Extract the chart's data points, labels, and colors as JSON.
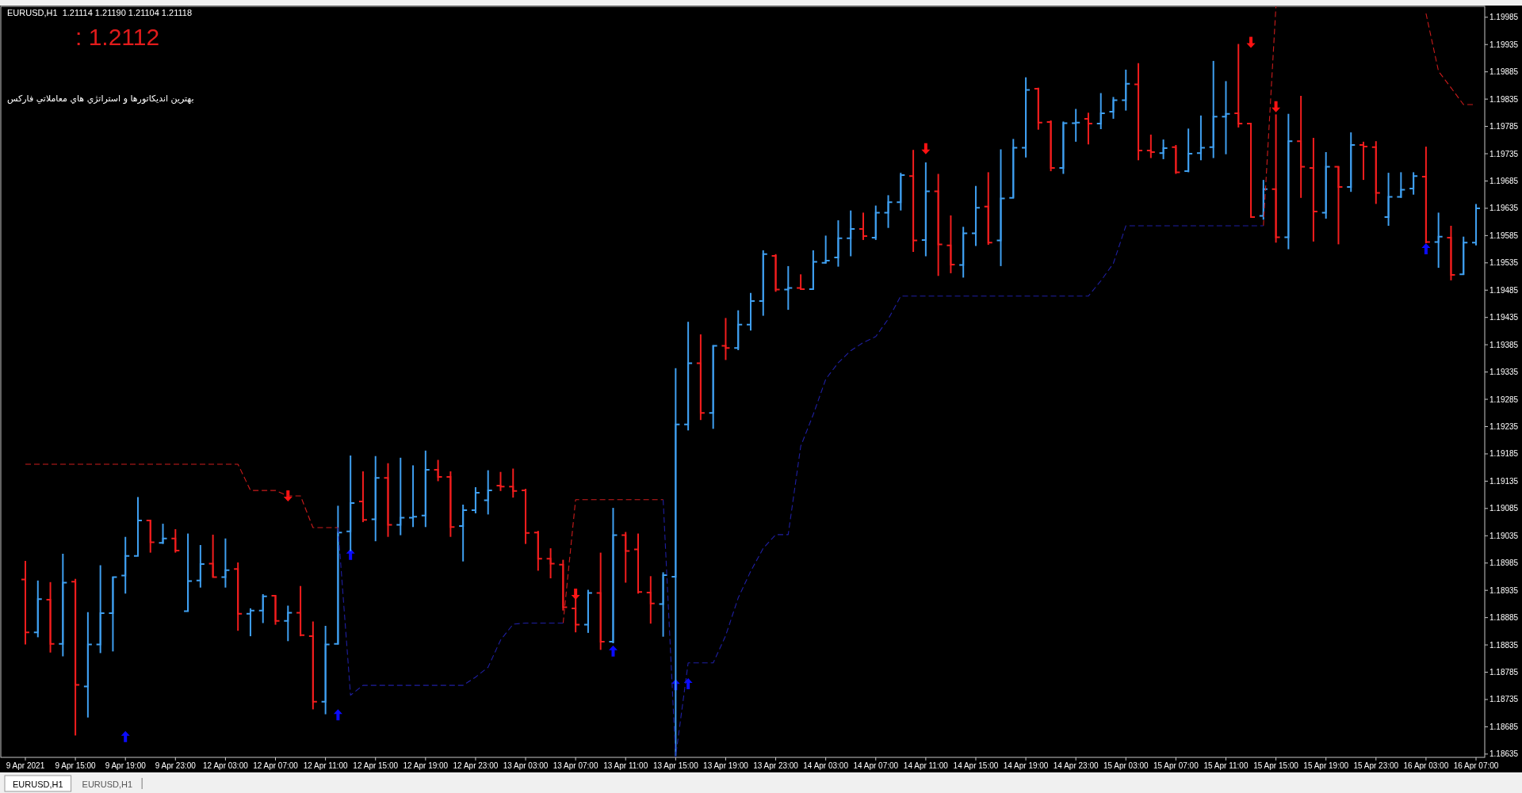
{
  "chart_data": {
    "type": "candlestick",
    "title": "EURUSD,H1  1.21114 1.21190 1.21104 1.21118",
    "annotations": [
      ": 1.2112",
      "بهترین اندیکاتورها و استراتژي هاي معاملاتي فارکس",
      "EURUSD,H1",
      "EURUSD,H1"
    ],
    "categories": [
      "9 Apr 2021",
      null,
      null,
      null,
      "9 Apr 15:00",
      null,
      null,
      null,
      "9 Apr 19:00",
      null,
      null,
      null,
      "9 Apr 23:00",
      null,
      null,
      null,
      "12 Apr 03:00",
      null,
      null,
      null,
      "12 Apr 07:00",
      null,
      null,
      null,
      "12 Apr 11:00",
      null,
      null,
      null,
      "12 Apr 15:00",
      null,
      null,
      null,
      "12 Apr 19:00",
      null,
      null,
      null,
      "12 Apr 23:00",
      null,
      null,
      null,
      "13 Apr 03:00",
      null,
      null,
      null,
      "13 Apr 07:00",
      null,
      null,
      null,
      "13 Apr 11:00",
      null,
      null,
      null,
      "13 Apr 15:00",
      null,
      null,
      null,
      "13 Apr 19:00",
      null,
      null,
      null,
      "13 Apr 23:00",
      null,
      null,
      null,
      "14 Apr 03:00",
      null,
      null,
      null,
      "14 Apr 07:00",
      null,
      null,
      null,
      "14 Apr 11:00",
      null,
      null,
      null,
      "14 Apr 15:00",
      null,
      null,
      null,
      "14 Apr 19:00",
      null,
      null,
      null,
      "14 Apr 23:00",
      null,
      null,
      null,
      "15 Apr 03:00",
      null,
      null,
      null,
      "15 Apr 07:00",
      null,
      null,
      null,
      "15 Apr 11:00",
      null,
      null,
      null,
      "15 Apr 15:00",
      null,
      null,
      null,
      "15 Apr 19:00",
      null,
      null,
      null,
      "15 Apr 23:00",
      null,
      null,
      null,
      "16 Apr 03:00",
      null,
      null,
      null,
      "16 Apr 07:00"
    ],
    "ohlc": [
      [
        1.18955,
        1.18989,
        1.18836,
        1.18858
      ],
      [
        1.18858,
        1.18953,
        1.18849,
        1.18919
      ],
      [
        1.18918,
        1.1895,
        1.18821,
        1.18837
      ],
      [
        1.18837,
        1.19002,
        1.18814,
        1.18949
      ],
      [
        1.18951,
        1.18956,
        1.18669,
        1.18762
      ],
      [
        1.18759,
        1.18895,
        1.18702,
        1.18836
      ],
      [
        1.18836,
        1.18981,
        1.1882,
        1.18893
      ],
      [
        1.18893,
        1.1896,
        1.18823,
        1.18959
      ],
      [
        1.18962,
        1.19033,
        1.18929,
        1.18998
      ],
      [
        1.18998,
        1.19106,
        1.18998,
        1.19063
      ],
      [
        1.19063,
        1.19064,
        1.19004,
        1.19023
      ],
      [
        1.19022,
        1.19057,
        1.1902,
        1.1903
      ],
      [
        1.1903,
        1.19047,
        1.19004,
        1.19008
      ],
      [
        1.18897,
        1.19039,
        1.18896,
        1.18952
      ],
      [
        1.18953,
        1.19018,
        1.1894,
        1.18983
      ],
      [
        1.18984,
        1.19037,
        1.18959,
        1.18959
      ],
      [
        1.18959,
        1.1903,
        1.1894,
        1.18972
      ],
      [
        1.18974,
        1.18986,
        1.18861,
        1.18892
      ],
      [
        1.18892,
        1.18902,
        1.18851,
        1.18898
      ],
      [
        1.18898,
        1.18928,
        1.18875,
        1.18924
      ],
      [
        1.18925,
        1.18926,
        1.18872,
        1.18879
      ],
      [
        1.18879,
        1.18907,
        1.18842,
        1.18894
      ],
      [
        1.18894,
        1.18943,
        1.18851,
        1.18853
      ],
      [
        1.18851,
        1.18878,
        1.18717,
        1.18731
      ],
      [
        1.18731,
        1.1887,
        1.18708,
        1.18836
      ],
      [
        1.18837,
        1.1909,
        1.18836,
        1.19041
      ],
      [
        1.19043,
        1.19182,
        1.19007,
        1.19095
      ],
      [
        1.19098,
        1.19153,
        1.1906,
        1.19064
      ],
      [
        1.19065,
        1.19181,
        1.19025,
        1.19141
      ],
      [
        1.19141,
        1.19168,
        1.19033,
        1.19055
      ],
      [
        1.19055,
        1.19178,
        1.19036,
        1.19068
      ],
      [
        1.19068,
        1.19164,
        1.19051,
        1.1907
      ],
      [
        1.19072,
        1.19191,
        1.19051,
        1.19156
      ],
      [
        1.19156,
        1.19174,
        1.19135,
        1.19143
      ],
      [
        1.19143,
        1.19153,
        1.19033,
        1.19051
      ],
      [
        1.19053,
        1.19092,
        1.18988,
        1.19082
      ],
      [
        1.19082,
        1.19124,
        1.19076,
        1.19114
      ],
      [
        1.191,
        1.19155,
        1.19074,
        1.19118
      ],
      [
        1.19127,
        1.19152,
        1.19117,
        1.19125
      ],
      [
        1.19125,
        1.19158,
        1.19105,
        1.19117
      ],
      [
        1.19118,
        1.19121,
        1.1902,
        1.1904
      ],
      [
        1.19041,
        1.19044,
        1.18971,
        1.18993
      ],
      [
        1.18993,
        1.19012,
        1.18957,
        1.18984
      ],
      [
        1.18982,
        1.18991,
        1.18898,
        1.18904
      ],
      [
        1.18902,
        1.18935,
        1.18858,
        1.18872
      ],
      [
        1.18872,
        1.18936,
        1.18857,
        1.1893
      ],
      [
        1.1893,
        1.19004,
        1.18826,
        1.18841
      ],
      [
        1.18841,
        1.19086,
        1.18838,
        1.19036
      ],
      [
        1.19036,
        1.19042,
        1.18949,
        1.19007
      ],
      [
        1.1901,
        1.19039,
        1.18929,
        1.18932
      ],
      [
        1.18931,
        1.18961,
        1.18874,
        1.18911
      ],
      [
        1.1891,
        1.18968,
        1.1885,
        1.18963
      ],
      [
        1.1896,
        1.19342,
        1.18631,
        1.19239
      ],
      [
        1.19239,
        1.19427,
        1.19228,
        1.19351
      ],
      [
        1.19351,
        1.19404,
        1.19247,
        1.1926
      ],
      [
        1.1926,
        1.19384,
        1.19231,
        1.19383
      ],
      [
        1.19383,
        1.19434,
        1.19357,
        1.19379
      ],
      [
        1.19379,
        1.19448,
        1.19375,
        1.19422
      ],
      [
        1.19422,
        1.1948,
        1.19411,
        1.19465
      ],
      [
        1.19465,
        1.19558,
        1.19438,
        1.19551
      ],
      [
        1.19548,
        1.19551,
        1.19482,
        1.19486
      ],
      [
        1.19486,
        1.19529,
        1.19449,
        1.19489
      ],
      [
        1.19489,
        1.19514,
        1.19486,
        1.19487
      ],
      [
        1.19487,
        1.19558,
        1.19486,
        1.19537
      ],
      [
        1.19535,
        1.19585,
        1.19534,
        1.19539
      ],
      [
        1.19545,
        1.19613,
        1.19528,
        1.1958
      ],
      [
        1.1958,
        1.19631,
        1.19547,
        1.19597
      ],
      [
        1.19597,
        1.19627,
        1.19577,
        1.19584
      ],
      [
        1.19581,
        1.1964,
        1.19577,
        1.19627
      ],
      [
        1.19627,
        1.19659,
        1.19599,
        1.19646
      ],
      [
        1.19646,
        1.197,
        1.19631,
        1.19696
      ],
      [
        1.19694,
        1.19742,
        1.19555,
        1.19576
      ],
      [
        1.19577,
        1.19719,
        1.19547,
        1.19666
      ],
      [
        1.19666,
        1.19698,
        1.19511,
        1.19569
      ],
      [
        1.19567,
        1.19622,
        1.19516,
        1.19532
      ],
      [
        1.19531,
        1.19601,
        1.19508,
        1.19589
      ],
      [
        1.19589,
        1.19676,
        1.19566,
        1.19636
      ],
      [
        1.19638,
        1.19701,
        1.19568,
        1.19572
      ],
      [
        1.19576,
        1.19743,
        1.19529,
        1.19653
      ],
      [
        1.19654,
        1.19762,
        1.19654,
        1.19746
      ],
      [
        1.19746,
        1.19875,
        1.19728,
        1.19852
      ],
      [
        1.19854,
        1.19856,
        1.19779,
        1.19792
      ],
      [
        1.19793,
        1.19796,
        1.19703,
        1.19709
      ],
      [
        1.19709,
        1.19794,
        1.19698,
        1.19791
      ],
      [
        1.19791,
        1.19817,
        1.19757,
        1.19792
      ],
      [
        1.19799,
        1.1981,
        1.19752,
        1.1979
      ],
      [
        1.1979,
        1.19846,
        1.1978,
        1.19809
      ],
      [
        1.19812,
        1.19839,
        1.19799,
        1.19833
      ],
      [
        1.19833,
        1.19889,
        1.19814,
        1.19863
      ],
      [
        1.19862,
        1.19901,
        1.19723,
        1.19741
      ],
      [
        1.19741,
        1.1977,
        1.19727,
        1.19738
      ],
      [
        1.19736,
        1.19761,
        1.19725,
        1.19745
      ],
      [
        1.19747,
        1.19751,
        1.19698,
        1.19701
      ],
      [
        1.19703,
        1.19781,
        1.19701,
        1.19735
      ],
      [
        1.19736,
        1.19805,
        1.19723,
        1.19746
      ],
      [
        1.19747,
        1.19905,
        1.19727,
        1.19803
      ],
      [
        1.19803,
        1.19868,
        1.19734,
        1.19808
      ],
      [
        1.19809,
        1.19936,
        1.19783,
        1.1979
      ],
      [
        1.1979,
        1.1979,
        1.19619,
        1.19619
      ],
      [
        1.19621,
        1.19687,
        1.19614,
        1.1967
      ],
      [
        1.1967,
        1.19807,
        1.19572,
        1.19582
      ],
      [
        1.19582,
        1.19808,
        1.1956,
        1.19758
      ],
      [
        1.19758,
        1.19841,
        1.19654,
        1.19711
      ],
      [
        1.19709,
        1.19764,
        1.19574,
        1.19629
      ],
      [
        1.19627,
        1.19738,
        1.19616,
        1.19711
      ],
      [
        1.19711,
        1.19712,
        1.19569,
        1.19674
      ],
      [
        1.19674,
        1.19774,
        1.19665,
        1.19751
      ],
      [
        1.19751,
        1.19757,
        1.19687,
        1.19748
      ],
      [
        1.19747,
        1.19758,
        1.19643,
        1.19663
      ],
      [
        1.19619,
        1.197,
        1.19603,
        1.19656
      ],
      [
        1.19656,
        1.19701,
        1.19654,
        1.19669
      ],
      [
        1.19671,
        1.19701,
        1.1966,
        1.19694
      ],
      [
        1.19693,
        1.19748,
        1.19571,
        1.19573
      ],
      [
        1.19573,
        1.19627,
        1.19526,
        1.19583
      ],
      [
        1.19581,
        1.19603,
        1.19503,
        1.19513
      ],
      [
        1.19514,
        1.19583,
        1.19513,
        1.19572
      ],
      [
        1.19572,
        1.19643,
        1.19567,
        1.19635
      ]
    ],
    "colors": [
      "#f21d1d",
      "#3f9ff0",
      "#f21d1d",
      "#3f9ff0",
      "#f21d1d",
      "#3f9ff0",
      "#3f9ff0",
      "#3f9ff0",
      "#3f9ff0",
      "#3f9ff0",
      "#f21d1d",
      "#3f9ff0",
      "#f21d1d",
      "#3f9ff0",
      "#3f9ff0",
      "#f21d1d",
      "#3f9ff0",
      "#f21d1d",
      "#3f9ff0",
      "#3f9ff0",
      "#f21d1d",
      "#3f9ff0",
      "#f21d1d",
      "#f21d1d",
      "#3f9ff0",
      "#3f9ff0",
      "#3f9ff0",
      "#f21d1d",
      "#3f9ff0",
      "#f21d1d",
      "#3f9ff0",
      "#3f9ff0",
      "#3f9ff0",
      "#f21d1d",
      "#f21d1d",
      "#3f9ff0",
      "#3f9ff0",
      "#3f9ff0",
      "#f21d1d",
      "#f21d1d",
      "#f21d1d",
      "#f21d1d",
      "#f21d1d",
      "#f21d1d",
      "#f21d1d",
      "#3f9ff0",
      "#f21d1d",
      "#3f9ff0",
      "#f21d1d",
      "#f21d1d",
      "#f21d1d",
      "#3f9ff0",
      "#3f9ff0",
      "#3f9ff0",
      "#f21d1d",
      "#3f9ff0",
      "#f21d1d",
      "#3f9ff0",
      "#3f9ff0",
      "#3f9ff0",
      "#f21d1d",
      "#3f9ff0",
      "#f21d1d",
      "#3f9ff0",
      "#3f9ff0",
      "#3f9ff0",
      "#3f9ff0",
      "#f21d1d",
      "#3f9ff0",
      "#3f9ff0",
      "#3f9ff0",
      "#f21d1d",
      "#3f9ff0",
      "#f21d1d",
      "#f21d1d",
      "#3f9ff0",
      "#3f9ff0",
      "#f21d1d",
      "#3f9ff0",
      "#3f9ff0",
      "#3f9ff0",
      "#f21d1d",
      "#f21d1d",
      "#3f9ff0",
      "#3f9ff0",
      "#f21d1d",
      "#3f9ff0",
      "#3f9ff0",
      "#3f9ff0",
      "#f21d1d",
      "#f21d1d",
      "#3f9ff0",
      "#f21d1d",
      "#3f9ff0",
      "#3f9ff0",
      "#3f9ff0",
      "#3f9ff0",
      "#f21d1d",
      "#f21d1d",
      "#3f9ff0",
      "#f21d1d",
      "#3f9ff0",
      "#f21d1d",
      "#f21d1d",
      "#3f9ff0",
      "#f21d1d",
      "#3f9ff0",
      "#f21d1d",
      "#f21d1d",
      "#3f9ff0",
      "#3f9ff0",
      "#3f9ff0",
      "#f21d1d",
      "#3f9ff0",
      "#f21d1d",
      "#3f9ff0",
      "#3f9ff0"
    ],
    "series": [
      {
        "type": "line",
        "color": "#cc1c1c",
        "line_style": "dashed",
        "values": [
          1.19166,
          1.19166,
          1.19166,
          1.19166,
          1.19166,
          1.19166,
          1.19166,
          1.19166,
          1.19166,
          1.19166,
          1.19166,
          1.19166,
          1.19166,
          1.19166,
          1.19166,
          1.19166,
          1.19166,
          1.19166,
          1.19118,
          1.19118,
          1.19118,
          1.19108,
          1.19108,
          1.1905,
          1.1905,
          1.1905,
          null,
          null,
          null,
          null,
          null,
          null,
          null,
          null,
          null,
          null,
          null,
          null,
          null,
          null,
          null,
          null,
          null,
          1.18875,
          1.19101,
          1.19101,
          1.19101,
          1.19101,
          1.19101,
          1.19101,
          1.19101,
          1.19101,
          null,
          null,
          null,
          null,
          null,
          null,
          null,
          null,
          null,
          null,
          null,
          null,
          null,
          null,
          null,
          null,
          null,
          null,
          null,
          null,
          null,
          null,
          null,
          null,
          null,
          null,
          null,
          null,
          null,
          null,
          null,
          null,
          null,
          null,
          null,
          null,
          null,
          null,
          null,
          null,
          null,
          null,
          null,
          null,
          null,
          null,
          null,
          1.19603,
          1.20005,
          null,
          null,
          null,
          null,
          null,
          null,
          null,
          null,
          null,
          null,
          null,
          1.19992,
          1.19886,
          1.19856,
          1.19825,
          1.19825
        ]
      },
      {
        "type": "line",
        "color": "#1f1fa3",
        "line_style": "dashed",
        "values": [
          null,
          null,
          null,
          null,
          null,
          null,
          null,
          null,
          null,
          null,
          null,
          null,
          null,
          null,
          null,
          null,
          null,
          null,
          null,
          null,
          null,
          null,
          null,
          null,
          null,
          1.1905,
          1.18743,
          1.18761,
          1.18761,
          1.18761,
          1.18761,
          1.18761,
          1.18761,
          1.18761,
          1.18761,
          1.18761,
          1.18776,
          1.18794,
          1.18844,
          1.18873,
          1.18875,
          1.18875,
          1.18875,
          1.18875,
          null,
          null,
          null,
          null,
          null,
          null,
          null,
          1.19101,
          1.1863,
          1.18802,
          1.18802,
          1.18802,
          1.18852,
          1.18921,
          1.1897,
          1.19012,
          1.19037,
          1.19037,
          1.19199,
          1.19257,
          1.19322,
          1.19352,
          1.19374,
          1.19389,
          1.194,
          1.19432,
          1.19474,
          1.19474,
          1.19474,
          1.19474,
          1.19474,
          1.19474,
          1.19474,
          1.19474,
          1.19474,
          1.19474,
          1.19474,
          1.19474,
          1.19474,
          1.19474,
          1.19474,
          1.19474,
          1.19502,
          1.19534,
          1.19603,
          1.19603,
          1.19603,
          1.19603,
          1.19603,
          1.19603,
          1.19603,
          1.19603,
          1.19603,
          1.19603,
          1.19603,
          1.19603,
          null,
          null,
          null,
          null,
          null,
          null,
          null,
          null,
          null,
          null,
          null,
          null,
          null,
          null,
          null,
          null,
          null
        ]
      },
      {
        "type": "scatter",
        "color": "#0b0bff",
        "marker": "triangle",
        "values": [
          null,
          null,
          null,
          null,
          null,
          null,
          null,
          null,
          1.18667,
          null,
          null,
          null,
          null,
          null,
          null,
          null,
          null,
          null,
          null,
          null,
          null,
          null,
          null,
          null,
          null,
          1.18707,
          1.19001,
          null,
          null,
          null,
          null,
          null,
          null,
          null,
          null,
          null,
          null,
          null,
          null,
          null,
          null,
          null,
          null,
          null,
          null,
          null,
          null,
          1.18824,
          null,
          null,
          null,
          null,
          1.18762,
          1.18764,
          null,
          null,
          null,
          null,
          null,
          null,
          null,
          null,
          null,
          null,
          null,
          null,
          null,
          null,
          null,
          null,
          null,
          null,
          null,
          null,
          null,
          null,
          null,
          null,
          null,
          null,
          null,
          null,
          null,
          null,
          null,
          null,
          null,
          null,
          null,
          null,
          null,
          null,
          null,
          null,
          null,
          null,
          null,
          null,
          null,
          null,
          null,
          null,
          null,
          null,
          null,
          null,
          null,
          null,
          null,
          null,
          null,
          null,
          1.19561,
          null,
          null,
          null,
          null
        ]
      },
      {
        "type": "scatter",
        "color": "#ff1212",
        "marker": "triangle",
        "values": [
          null,
          null,
          null,
          null,
          null,
          null,
          null,
          null,
          null,
          null,
          null,
          null,
          null,
          null,
          null,
          null,
          null,
          null,
          null,
          null,
          null,
          1.19108,
          null,
          null,
          null,
          null,
          null,
          null,
          null,
          null,
          null,
          null,
          null,
          null,
          null,
          null,
          null,
          null,
          null,
          null,
          null,
          null,
          null,
          null,
          1.18928,
          null,
          null,
          null,
          null,
          null,
          null,
          null,
          null,
          null,
          null,
          null,
          null,
          null,
          null,
          null,
          null,
          null,
          null,
          null,
          null,
          null,
          null,
          null,
          null,
          null,
          null,
          null,
          1.19744,
          null,
          null,
          null,
          null,
          null,
          null,
          null,
          null,
          null,
          null,
          null,
          null,
          null,
          null,
          null,
          null,
          null,
          null,
          null,
          null,
          null,
          null,
          null,
          null,
          null,
          1.19939,
          null,
          1.19821,
          null,
          null,
          null,
          null,
          null,
          null,
          null,
          null,
          null,
          null,
          null,
          null,
          null,
          null,
          null,
          null
        ]
      }
    ],
    "ylim": [
      1.18629,
      1.20005
    ],
    "yticks": [
      1.18635,
      1.18685,
      1.18735,
      1.18785,
      1.18835,
      1.18885,
      1.18935,
      1.18985,
      1.19035,
      1.19085,
      1.19135,
      1.19185,
      1.19235,
      1.19285,
      1.19335,
      1.19385,
      1.19435,
      1.19485,
      1.19535,
      1.19585,
      1.19635,
      1.19685,
      1.19735,
      1.19785,
      1.19835,
      1.19885,
      1.19935,
      1.19985
    ]
  }
}
